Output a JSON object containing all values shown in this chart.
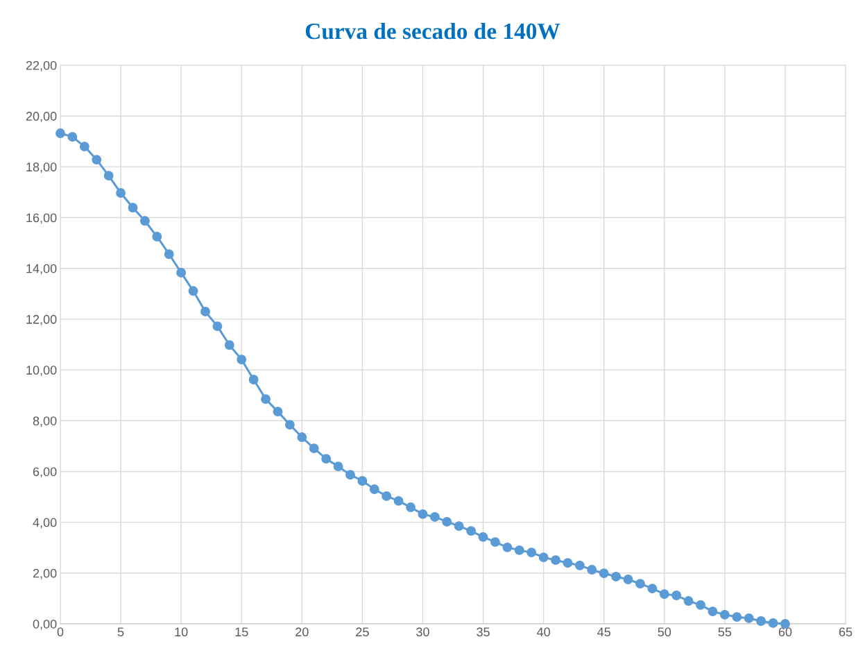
{
  "chart_data": {
    "type": "line",
    "title": "Curva de secado de 140W",
    "x": [
      0,
      1,
      2,
      3,
      4,
      5,
      6,
      7,
      8,
      9,
      10,
      11,
      12,
      13,
      14,
      15,
      16,
      17,
      18,
      19,
      20,
      21,
      22,
      23,
      24,
      25,
      26,
      27,
      28,
      29,
      30,
      31,
      32,
      33,
      34,
      35,
      36,
      37,
      38,
      39,
      40,
      41,
      42,
      43,
      44,
      45,
      46,
      47,
      48,
      49,
      50,
      51,
      52,
      53,
      54,
      55,
      56,
      57,
      58,
      59,
      60
    ],
    "series": [
      {
        "color": "#5b9bd5",
        "values": [
          19.32,
          19.18,
          18.8,
          18.28,
          17.65,
          16.97,
          16.39,
          15.87,
          15.25,
          14.56,
          13.83,
          13.11,
          12.3,
          11.72,
          10.98,
          10.41,
          9.62,
          8.85,
          8.36,
          7.84,
          7.35,
          6.91,
          6.5,
          6.2,
          5.87,
          5.63,
          5.3,
          5.03,
          4.84,
          4.59,
          4.32,
          4.21,
          4.02,
          3.85,
          3.66,
          3.42,
          3.22,
          3.01,
          2.9,
          2.81,
          2.62,
          2.51,
          2.4,
          2.3,
          2.13,
          1.99,
          1.86,
          1.75,
          1.58,
          1.39,
          1.17,
          1.12,
          0.9,
          0.74,
          0.49,
          0.36,
          0.27,
          0.22,
          0.11,
          0.03,
          0.0
        ]
      }
    ],
    "xlim": [
      0,
      65
    ],
    "xticks": [
      0,
      5,
      10,
      15,
      20,
      25,
      30,
      35,
      40,
      45,
      50,
      55,
      60,
      65
    ],
    "ylim": [
      0,
      22
    ],
    "yticks": [
      {
        "value": 0,
        "label": "0,00"
      },
      {
        "value": 2,
        "label": "2,00"
      },
      {
        "value": 4,
        "label": "4,00"
      },
      {
        "value": 6,
        "label": "6,00"
      },
      {
        "value": 8,
        "label": "8,00"
      },
      {
        "value": 10,
        "label": "10,00"
      },
      {
        "value": 12,
        "label": "12,00"
      },
      {
        "value": 14,
        "label": "14,00"
      },
      {
        "value": 16,
        "label": "16,00"
      },
      {
        "value": 18,
        "label": "18,00"
      },
      {
        "value": 20,
        "label": "20,00"
      },
      {
        "value": 22,
        "label": "22,00"
      }
    ],
    "grid": true,
    "marker": "circle",
    "line_style": "solid",
    "legend": false
  }
}
